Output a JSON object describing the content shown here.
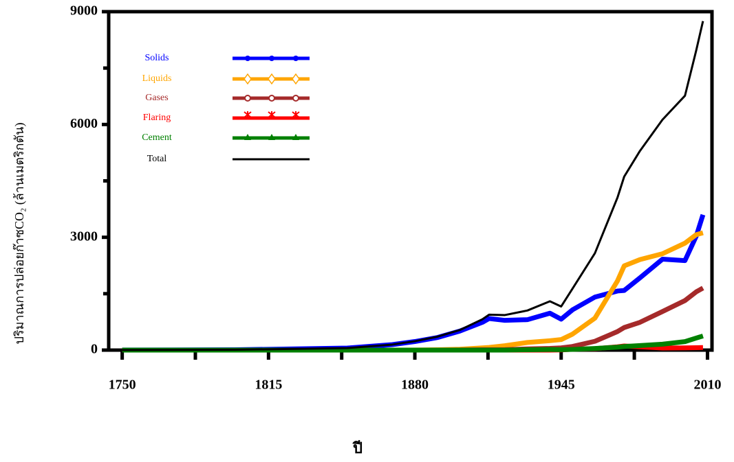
{
  "chart_data": {
    "type": "line",
    "y_label": "ปริมาณการปล่อยก๊าซCO₂ (ล้านเมตริกตัน)",
    "x_label": "ปี",
    "xlim": [
      1744,
      2012
    ],
    "xticks": [
      1750,
      1815,
      1880,
      1945,
      2010
    ],
    "xminorticks": [
      1782.5,
      1847.5,
      1912.5,
      1977.5
    ],
    "ylim": [
      0,
      9000
    ],
    "yticks": [
      0,
      3000,
      6000,
      9000
    ],
    "yminorticks": [
      1500,
      4500,
      7500
    ],
    "legend": "top-left",
    "x": [
      1750,
      1800,
      1850,
      1870,
      1880,
      1890,
      1900,
      1910,
      1913,
      1920,
      1930,
      1940,
      1945,
      1950,
      1960,
      1970,
      1973,
      1980,
      1990,
      2000,
      2005,
      2008
    ],
    "series": [
      {
        "name": "Solids",
        "color": "#0000ff",
        "marker": "dot",
        "values": [
          3,
          8,
          54,
          146,
          228,
          334,
          507,
          739,
          840,
          791,
          809,
          981,
          822,
          1070,
          1410,
          1571,
          1586,
          1921,
          2418,
          2381,
          3030,
          3600
        ]
      },
      {
        "name": "Liquids",
        "color": "#ffa500",
        "marker": "diamond",
        "values": [
          0,
          0,
          0,
          1,
          3,
          9,
          23,
          60,
          72,
          116,
          203,
          250,
          280,
          423,
          850,
          1839,
          2240,
          2407,
          2563,
          2845,
          3070,
          3120
        ]
      },
      {
        "name": "Gases",
        "color": "#a52a2a",
        "marker": "circle",
        "values": [
          0,
          0,
          0,
          0,
          0,
          1,
          3,
          8,
          10,
          12,
          32,
          45,
          60,
          97,
          235,
          493,
          600,
          739,
          1026,
          1318,
          1550,
          1650
        ]
      },
      {
        "name": "Flaring",
        "color": "#ff0000",
        "marker": "star",
        "values": [
          0,
          0,
          0,
          0,
          0,
          0,
          0,
          0,
          0,
          0,
          0,
          0,
          5,
          23,
          39,
          87,
          110,
          89,
          55,
          60,
          65,
          69
        ]
      },
      {
        "name": "Cement",
        "color": "#008000",
        "marker": "triangle",
        "values": [
          0,
          0,
          0,
          0,
          0,
          0,
          0,
          0,
          0,
          0,
          10,
          15,
          12,
          18,
          43,
          78,
          95,
          120,
          157,
          226,
          320,
          375
        ]
      },
      {
        "name": "Total",
        "color": "#000000",
        "marker": "none",
        "values": [
          3,
          8,
          54,
          147,
          236,
          356,
          534,
          819,
          943,
          932,
          1053,
          1299,
          1160,
          1630,
          2577,
          4053,
          4614,
          5297,
          6127,
          6765,
          7971,
          8749
        ]
      }
    ]
  }
}
